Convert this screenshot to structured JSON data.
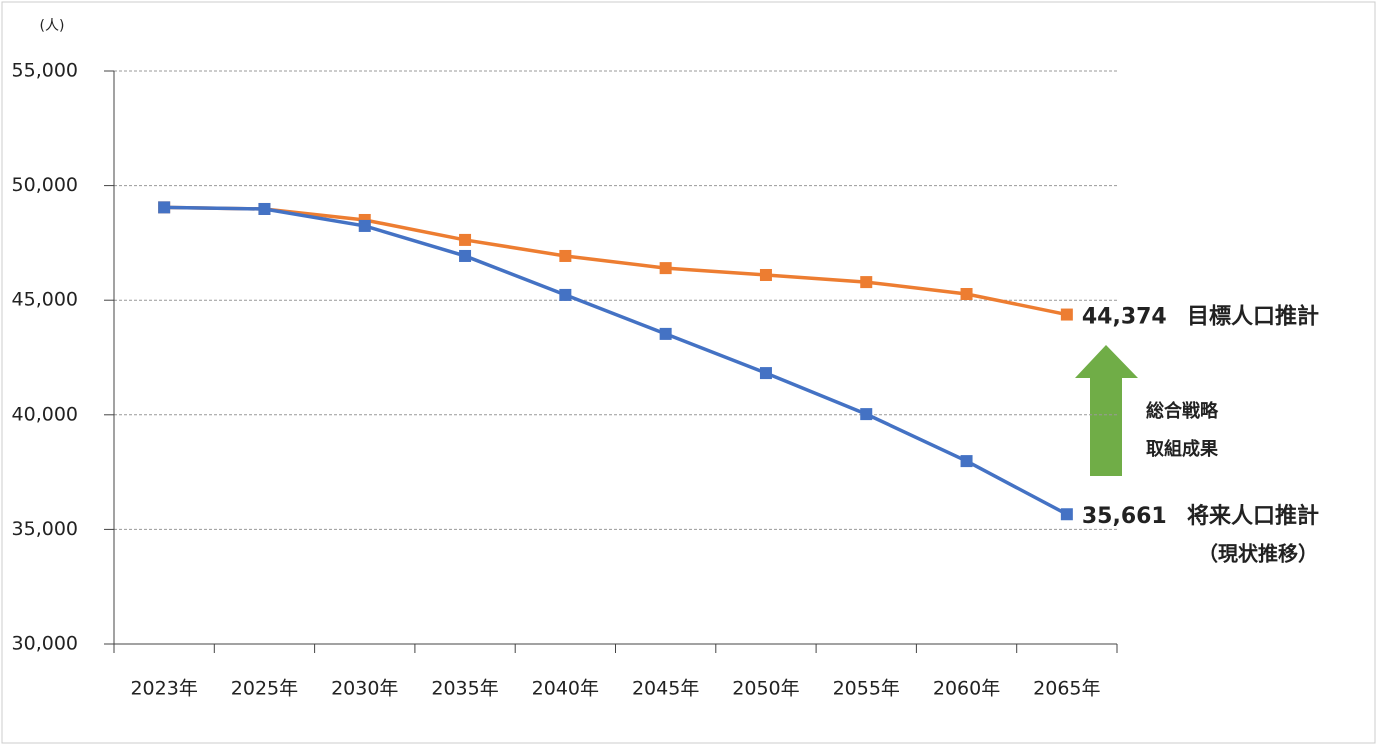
{
  "chart_data": {
    "type": "line",
    "y_unit": "(人)",
    "categories": [
      "2023年",
      "2025年",
      "2030年",
      "2035年",
      "2040年",
      "2045年",
      "2050年",
      "2055年",
      "2060年",
      "2065年"
    ],
    "series": [
      {
        "name": "目標人口推計",
        "color": "#ed7d31",
        "values": [
          49050,
          48980,
          48500,
          47630,
          46930,
          46400,
          46100,
          45790,
          45270,
          44374
        ],
        "value_labels": [
          null,
          null,
          null,
          null,
          null,
          null,
          null,
          null,
          null,
          "44,374"
        ]
      },
      {
        "name": "将来人口推計",
        "note": "（現状推移）",
        "color": "#4472c4",
        "values": [
          49050,
          48980,
          48240,
          46930,
          45230,
          43530,
          41820,
          40030,
          37980,
          35661
        ],
        "value_labels": [
          null,
          null,
          null,
          null,
          null,
          null,
          null,
          null,
          null,
          "35,661"
        ]
      }
    ],
    "annotation": {
      "lines": [
        "総合戦略",
        "取組成果"
      ],
      "color": "#70ad47"
    },
    "ylim": [
      30000,
      55000
    ],
    "yticks": [
      {
        "value": 30000,
        "label": "30,000"
      },
      {
        "value": 35000,
        "label": "35,000"
      },
      {
        "value": 40000,
        "label": "40,000"
      },
      {
        "value": 45000,
        "label": "45,000"
      },
      {
        "value": 50000,
        "label": "50,000"
      },
      {
        "value": 55000,
        "label": "55,000"
      }
    ],
    "grid": true
  }
}
